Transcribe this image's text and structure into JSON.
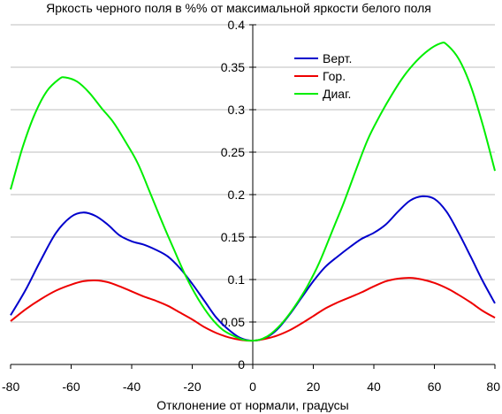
{
  "chart_data": {
    "type": "line",
    "title": "Яркость черного поля в %% от максимальной яркости белого поля",
    "xlabel": "Отклонение от нормали, градусы",
    "ylabel": "",
    "xlim": [
      -80,
      80
    ],
    "ylim": [
      0,
      0.4
    ],
    "x_ticks": [
      "-80",
      "-60",
      "-40",
      "-20",
      "0",
      "20",
      "40",
      "60",
      "80"
    ],
    "y_ticks": [
      "0",
      "0.05",
      "0.1",
      "0.15",
      "0.2",
      "0.25",
      "0.3",
      "0.35",
      "0.4"
    ],
    "grid": "horizontal",
    "legend_position": "top-right",
    "series": [
      {
        "name": "Верт.",
        "color": "#0000cc",
        "points": [
          [
            -80,
            0.058
          ],
          [
            -75,
            0.088
          ],
          [
            -70,
            0.123
          ],
          [
            -65,
            0.155
          ],
          [
            -60,
            0.174
          ],
          [
            -56,
            0.179
          ],
          [
            -52,
            0.175
          ],
          [
            -48,
            0.165
          ],
          [
            -44,
            0.152
          ],
          [
            -40,
            0.145
          ],
          [
            -36,
            0.141
          ],
          [
            -32,
            0.135
          ],
          [
            -28,
            0.127
          ],
          [
            -24,
            0.113
          ],
          [
            -20,
            0.095
          ],
          [
            -16,
            0.075
          ],
          [
            -12,
            0.055
          ],
          [
            -8,
            0.041
          ],
          [
            -4,
            0.031
          ],
          [
            0,
            0.028
          ],
          [
            4,
            0.031
          ],
          [
            8,
            0.041
          ],
          [
            12,
            0.058
          ],
          [
            16,
            0.078
          ],
          [
            20,
            0.098
          ],
          [
            24,
            0.115
          ],
          [
            28,
            0.127
          ],
          [
            32,
            0.138
          ],
          [
            36,
            0.148
          ],
          [
            40,
            0.155
          ],
          [
            44,
            0.165
          ],
          [
            48,
            0.18
          ],
          [
            52,
            0.193
          ],
          [
            56,
            0.198
          ],
          [
            60,
            0.195
          ],
          [
            64,
            0.18
          ],
          [
            68,
            0.155
          ],
          [
            72,
            0.127
          ],
          [
            76,
            0.098
          ],
          [
            80,
            0.072
          ]
        ]
      },
      {
        "name": "Гор.",
        "color": "#ee0000",
        "points": [
          [
            -80,
            0.051
          ],
          [
            -75,
            0.065
          ],
          [
            -70,
            0.077
          ],
          [
            -65,
            0.087
          ],
          [
            -60,
            0.094
          ],
          [
            -56,
            0.098
          ],
          [
            -52,
            0.099
          ],
          [
            -48,
            0.097
          ],
          [
            -44,
            0.092
          ],
          [
            -40,
            0.086
          ],
          [
            -36,
            0.08
          ],
          [
            -32,
            0.075
          ],
          [
            -28,
            0.069
          ],
          [
            -24,
            0.061
          ],
          [
            -20,
            0.053
          ],
          [
            -16,
            0.044
          ],
          [
            -12,
            0.037
          ],
          [
            -8,
            0.032
          ],
          [
            -4,
            0.029
          ],
          [
            0,
            0.028
          ],
          [
            4,
            0.03
          ],
          [
            8,
            0.034
          ],
          [
            12,
            0.04
          ],
          [
            16,
            0.048
          ],
          [
            20,
            0.057
          ],
          [
            24,
            0.066
          ],
          [
            28,
            0.073
          ],
          [
            32,
            0.079
          ],
          [
            36,
            0.085
          ],
          [
            40,
            0.092
          ],
          [
            44,
            0.098
          ],
          [
            48,
            0.101
          ],
          [
            52,
            0.102
          ],
          [
            56,
            0.1
          ],
          [
            60,
            0.096
          ],
          [
            64,
            0.09
          ],
          [
            68,
            0.082
          ],
          [
            72,
            0.073
          ],
          [
            76,
            0.063
          ],
          [
            80,
            0.055
          ]
        ]
      },
      {
        "name": "Диаг.",
        "color": "#00ee00",
        "points": [
          [
            -80,
            0.206
          ],
          [
            -76,
            0.256
          ],
          [
            -72,
            0.295
          ],
          [
            -68,
            0.322
          ],
          [
            -64,
            0.336
          ],
          [
            -62,
            0.338
          ],
          [
            -58,
            0.333
          ],
          [
            -54,
            0.32
          ],
          [
            -50,
            0.302
          ],
          [
            -46,
            0.285
          ],
          [
            -42,
            0.262
          ],
          [
            -38,
            0.237
          ],
          [
            -34,
            0.203
          ],
          [
            -30,
            0.168
          ],
          [
            -26,
            0.135
          ],
          [
            -22,
            0.103
          ],
          [
            -18,
            0.077
          ],
          [
            -14,
            0.056
          ],
          [
            -10,
            0.041
          ],
          [
            -6,
            0.033
          ],
          [
            -3,
            0.029
          ],
          [
            0,
            0.028
          ],
          [
            3,
            0.03
          ],
          [
            6,
            0.036
          ],
          [
            10,
            0.05
          ],
          [
            14,
            0.069
          ],
          [
            18,
            0.092
          ],
          [
            22,
            0.12
          ],
          [
            26,
            0.155
          ],
          [
            30,
            0.19
          ],
          [
            34,
            0.228
          ],
          [
            38,
            0.265
          ],
          [
            42,
            0.293
          ],
          [
            46,
            0.318
          ],
          [
            50,
            0.34
          ],
          [
            54,
            0.357
          ],
          [
            58,
            0.37
          ],
          [
            62,
            0.378
          ],
          [
            64,
            0.377
          ],
          [
            68,
            0.36
          ],
          [
            72,
            0.328
          ],
          [
            76,
            0.282
          ],
          [
            80,
            0.228
          ]
        ]
      }
    ]
  }
}
